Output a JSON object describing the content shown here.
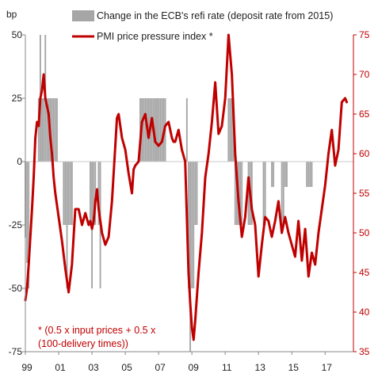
{
  "chart_data": {
    "type": "bar+line",
    "left_axis": {
      "label": "bp",
      "ylim": [
        -75,
        50
      ],
      "ticks": [
        50,
        25,
        0,
        -25,
        -50,
        -75
      ]
    },
    "right_axis": {
      "label": "",
      "ylim": [
        35,
        75
      ],
      "ticks": [
        75,
        70,
        65,
        60,
        55,
        50,
        45,
        40,
        35
      ]
    },
    "x_axis": {
      "xlim": [
        1999.0,
        2018.7
      ],
      "tick_labels": [
        "99",
        "01",
        "03",
        "05",
        "07",
        "09",
        "11",
        "13",
        "15",
        "17"
      ],
      "tick_positions": [
        1999,
        2001,
        2003,
        2005,
        2007,
        2009,
        2011,
        2013,
        2015,
        2017
      ]
    },
    "legend": [
      {
        "name": "Change in the ECB's refi rate (deposit rate from 2015)",
        "symbol": "bar",
        "color": "#a6a6a6"
      },
      {
        "name": "PMI price pressure index *",
        "symbol": "line",
        "color": "#c00000"
      }
    ],
    "annotation": [
      "* (0.5 x input prices + 0.5 x",
      "(100-delivery times))"
    ],
    "bar_color": "#a6a6a6",
    "line_color": "#c00000",
    "zero_line_color": "#c8c8c8",
    "series": [
      {
        "name": "Change in the ECB's refi rate (deposit rate from 2015)",
        "axis": "left",
        "chart_type": "bar",
        "x": [
          1999.0,
          1999.1,
          1999.2,
          1999.8,
          1999.9,
          2000.0,
          2000.1,
          2000.2,
          2000.3,
          2000.4,
          2000.5,
          2000.6,
          2000.7,
          2000.8,
          2000.9,
          2001.3,
          2001.4,
          2001.5,
          2001.6,
          2001.7,
          2001.8,
          2002.9,
          2003.0,
          2003.1,
          2003.2,
          2003.4,
          2003.5,
          2005.9,
          2006.0,
          2006.1,
          2006.2,
          2006.3,
          2006.4,
          2006.5,
          2006.6,
          2006.7,
          2006.8,
          2006.9,
          2007.0,
          2007.1,
          2007.2,
          2007.3,
          2007.4,
          2008.7,
          2008.8,
          2008.9,
          2009.0,
          2009.1,
          2009.2,
          2009.3,
          2011.2,
          2011.3,
          2011.4,
          2011.5,
          2011.6,
          2011.7,
          2011.8,
          2011.9,
          2012.0,
          2012.4,
          2012.5,
          2012.6,
          2013.3,
          2013.4,
          2013.8,
          2013.9,
          2014.4,
          2014.5,
          2014.6,
          2014.7,
          2015.9,
          2016.0,
          2016.1,
          2016.2
        ],
        "values": [
          -30,
          -40,
          -50,
          25,
          50,
          25,
          25,
          50,
          25,
          25,
          25,
          25,
          25,
          25,
          25,
          -25,
          -25,
          -50,
          -25,
          -25,
          -25,
          -25,
          -50,
          -25,
          -25,
          -25,
          -50,
          25,
          25,
          25,
          25,
          25,
          25,
          25,
          25,
          25,
          25,
          25,
          25,
          25,
          25,
          25,
          25,
          25,
          -50,
          -75,
          -50,
          -50,
          -25,
          -25,
          25,
          25,
          25,
          25,
          -25,
          -25,
          -25,
          -25,
          -25,
          -25,
          -25,
          -25,
          -25,
          -25,
          -10,
          -10,
          -25,
          -25,
          -10,
          -10,
          -10,
          -10,
          -10,
          -10
        ]
      },
      {
        "name": "PMI price pressure index *",
        "axis": "right",
        "chart_type": "line",
        "x": [
          1999.0,
          1999.1,
          1999.2,
          1999.3,
          1999.4,
          1999.5,
          1999.6,
          1999.7,
          1999.8,
          1999.9,
          2000.0,
          2000.1,
          2000.2,
          2000.3,
          2000.4,
          2000.5,
          2000.6,
          2000.7,
          2000.8,
          2000.9,
          2001.0,
          2001.2,
          2001.4,
          2001.6,
          2001.8,
          2002.0,
          2002.2,
          2002.4,
          2002.6,
          2002.8,
          2002.9,
          2003.0,
          2003.1,
          2003.2,
          2003.3,
          2003.4,
          2003.6,
          2003.8,
          2004.0,
          2004.2,
          2004.4,
          2004.5,
          2004.6,
          2004.8,
          2005.0,
          2005.2,
          2005.4,
          2005.5,
          2005.6,
          2005.8,
          2006.0,
          2006.2,
          2006.4,
          2006.6,
          2006.8,
          2007.0,
          2007.2,
          2007.4,
          2007.6,
          2007.8,
          2007.9,
          2008.0,
          2008.2,
          2008.4,
          2008.6,
          2008.8,
          2008.9,
          2009.0,
          2009.1,
          2009.2,
          2009.4,
          2009.6,
          2009.8,
          2010.0,
          2010.2,
          2010.4,
          2010.6,
          2010.8,
          2011.0,
          2011.2,
          2011.4,
          2011.6,
          2011.8,
          2012.0,
          2012.2,
          2012.4,
          2012.6,
          2012.8,
          2013.0,
          2013.2,
          2013.4,
          2013.6,
          2013.8,
          2014.0,
          2014.2,
          2014.4,
          2014.6,
          2014.8,
          2015.0,
          2015.2,
          2015.4,
          2015.6,
          2015.8,
          2016.0,
          2016.2,
          2016.4,
          2016.6,
          2016.8,
          2017.0,
          2017.2,
          2017.4,
          2017.6,
          2017.8,
          2018.0,
          2018.2,
          2018.3
        ],
        "values": [
          41.5,
          43.0,
          46.0,
          49.5,
          53.0,
          57.0,
          62.0,
          64.0,
          63.5,
          67.0,
          68.0,
          70.0,
          67.0,
          66.0,
          65.0,
          62.0,
          60.0,
          57.0,
          55.0,
          53.5,
          52.0,
          49.0,
          45.5,
          42.5,
          46.0,
          53.0,
          53.0,
          51.0,
          52.5,
          51.0,
          51.5,
          50.5,
          51.5,
          54.0,
          55.5,
          53.0,
          50.0,
          48.5,
          49.5,
          54.0,
          61.0,
          64.5,
          65.0,
          62.0,
          60.5,
          57.5,
          55.0,
          58.0,
          58.5,
          59.0,
          64.0,
          65.0,
          62.0,
          64.5,
          61.5,
          61.0,
          61.5,
          63.5,
          64.0,
          62.0,
          61.5,
          61.5,
          63.0,
          60.5,
          59.0,
          45.0,
          41.0,
          38.0,
          36.5,
          39.0,
          45.0,
          50.0,
          57.0,
          60.0,
          64.0,
          69.0,
          62.5,
          63.5,
          67.0,
          75.0,
          70.0,
          60.0,
          54.0,
          49.5,
          52.0,
          57.0,
          53.0,
          51.0,
          44.5,
          48.5,
          52.0,
          51.5,
          49.5,
          51.5,
          54.0,
          50.0,
          52.0,
          50.0,
          48.5,
          47.0,
          51.5,
          46.5,
          50.5,
          44.5,
          47.5,
          46.0,
          50.0,
          53.0,
          56.0,
          60.0,
          63.0,
          58.5,
          60.5,
          66.5,
          67.0,
          66.5
        ]
      }
    ]
  }
}
